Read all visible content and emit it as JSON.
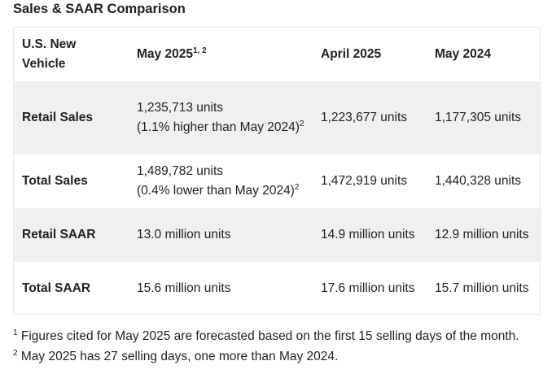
{
  "title": "Sales & SAAR Comparison",
  "table": {
    "headers": {
      "col1": "U.S. New Vehicle",
      "col2": "May 2025",
      "col2_sup": "1, 2",
      "col3": "April 2025",
      "col4": "May 2024"
    },
    "rows": [
      {
        "label": "Retail Sales",
        "may2025_line1": "1,235,713 units",
        "may2025_line2": "(1.1% higher than May 2024)",
        "may2025_sup": "2",
        "april2025": "1,223,677 units",
        "may2024": "1,177,305 units"
      },
      {
        "label": "Total Sales",
        "may2025_line1": "1,489,782 units",
        "may2025_line2": "(0.4% lower than May 2024)",
        "may2025_sup": "2",
        "april2025": "1,472,919 units",
        "may2024": "1,440,328 units"
      },
      {
        "label": "Retail SAAR",
        "may2025": "13.0 million units",
        "april2025": "14.9 million units",
        "may2024": "12.9 million units"
      },
      {
        "label": "Total SAAR",
        "may2025": "15.6 million units",
        "april2025": "17.6 million units",
        "may2024": "15.7 million units"
      }
    ]
  },
  "footnotes": [
    {
      "mark": "1",
      "text": "Figures cited for May 2025 are forecasted based on the first 15 selling days of the month."
    },
    {
      "mark": "2",
      "text": "May 2025 has 27 selling days, one more than May 2024."
    }
  ]
}
